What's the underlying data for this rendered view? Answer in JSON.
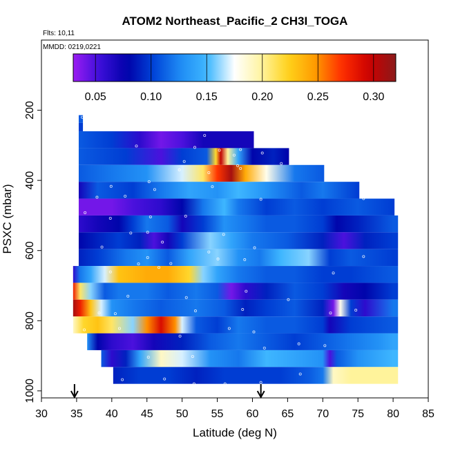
{
  "chart_data": {
    "type": "heatmap",
    "title": "ATOM2 Northeast_Pacific_2 CH3I_TOGA",
    "flights_note": "Flts: 10,11",
    "dates_note": "MMDD: 0219,0221",
    "xlabel": "Latitude (deg N)",
    "ylabel": "PSXC (mbar)",
    "xlim": [
      30,
      85
    ],
    "ylim": [
      1020,
      0
    ],
    "x_ticks": [
      "30",
      "35",
      "40",
      "45",
      "50",
      "55",
      "60",
      "65",
      "70",
      "75",
      "80",
      "85"
    ],
    "y_ticks": [
      "200",
      "400",
      "600",
      "800",
      "1000"
    ],
    "colorbar": {
      "range": [
        0.03,
        0.32
      ],
      "tick_values": [
        0.05,
        0.1,
        0.15,
        0.2,
        0.25,
        0.3
      ],
      "tick_labels": [
        "0.05",
        "0.10",
        "0.15",
        "0.20",
        "0.25",
        "0.30"
      ],
      "colors": [
        "#9a1cf2",
        "#3b0fd9",
        "#0000a8",
        "#0044d8",
        "#1f8cf5",
        "#3fb8ff",
        "#ffffff",
        "#fff4a0",
        "#ffd21a",
        "#ff9a00",
        "#ff2d00",
        "#cc0000",
        "#8b1a1a"
      ]
    },
    "arrows_lat": [
      34.7,
      61.2
    ],
    "bands": [
      {
        "p_top": 214,
        "p_bot": 236,
        "x0": 35.3,
        "x1": 35.9,
        "stops": [
          [
            35.3,
            0.11
          ]
        ]
      },
      {
        "p_top": 236,
        "p_bot": 260,
        "x0": 35.3,
        "x1": 35.9,
        "stops": [
          [
            35.3,
            0.1
          ]
        ]
      },
      {
        "p_top": 260,
        "p_bot": 308,
        "x0": 35.3,
        "x1": 60.2,
        "stops": [
          [
            35.3,
            0.11
          ],
          [
            40,
            0.1
          ],
          [
            44,
            0.06
          ],
          [
            47,
            0.04
          ],
          [
            50,
            0.05
          ],
          [
            53,
            0.07
          ],
          [
            56,
            0.07
          ],
          [
            60,
            0.07
          ]
        ]
      },
      {
        "p_top": 308,
        "p_bot": 356,
        "x0": 35.3,
        "x1": 65.2,
        "stops": [
          [
            35.3,
            0.11
          ],
          [
            42,
            0.1
          ],
          [
            47,
            0.05
          ],
          [
            50,
            0.1
          ],
          [
            53.5,
            0.11
          ],
          [
            54.8,
            0.22
          ],
          [
            55.5,
            0.3
          ],
          [
            56.5,
            0.2
          ],
          [
            58,
            0.14
          ],
          [
            60,
            0.08
          ],
          [
            63,
            0.09
          ],
          [
            65,
            0.08
          ]
        ]
      },
      {
        "p_top": 356,
        "p_bot": 404,
        "x0": 35.3,
        "x1": 70.2,
        "stops": [
          [
            35.3,
            0.11
          ],
          [
            40,
            0.12
          ],
          [
            45,
            0.13
          ],
          [
            50,
            0.17
          ],
          [
            53,
            0.21
          ],
          [
            55,
            0.27
          ],
          [
            57,
            0.31
          ],
          [
            59,
            0.24
          ],
          [
            62,
            0.18
          ],
          [
            66,
            0.12
          ],
          [
            70,
            0.11
          ]
        ]
      },
      {
        "p_top": 404,
        "p_bot": 452,
        "x0": 35.3,
        "x1": 75.2,
        "stops": [
          [
            35.3,
            0.07
          ],
          [
            38,
            0.11
          ],
          [
            43,
            0.1
          ],
          [
            47,
            0.12
          ],
          [
            51,
            0.14
          ],
          [
            55,
            0.13
          ],
          [
            58,
            0.15
          ],
          [
            62,
            0.13
          ],
          [
            67,
            0.11
          ],
          [
            70,
            0.12
          ],
          [
            75,
            0.1
          ]
        ]
      },
      {
        "p_top": 452,
        "p_bot": 500,
        "x0": 35.3,
        "x1": 80.2,
        "stops": [
          [
            35.3,
            0.04
          ],
          [
            40,
            0.04
          ],
          [
            43,
            0.05
          ],
          [
            47,
            0.06
          ],
          [
            50,
            0.08
          ],
          [
            53,
            0.12
          ],
          [
            56,
            0.15
          ],
          [
            58,
            0.12
          ],
          [
            62,
            0.1
          ],
          [
            66,
            0.11
          ],
          [
            70,
            0.1
          ],
          [
            75,
            0.11
          ],
          [
            80,
            0.1
          ]
        ]
      },
      {
        "p_top": 500,
        "p_bot": 548,
        "x0": 35.3,
        "x1": 80.7,
        "stops": [
          [
            35.3,
            0.06
          ],
          [
            38,
            0.07
          ],
          [
            41,
            0.08
          ],
          [
            43,
            0.1
          ],
          [
            45,
            0.12
          ],
          [
            48,
            0.11
          ],
          [
            50,
            0.07
          ],
          [
            53,
            0.1
          ],
          [
            56,
            0.13
          ],
          [
            59,
            0.12
          ],
          [
            62,
            0.11
          ],
          [
            66,
            0.11
          ],
          [
            70,
            0.1
          ],
          [
            72,
            0.08
          ],
          [
            75,
            0.09
          ],
          [
            80,
            0.11
          ]
        ]
      },
      {
        "p_top": 548,
        "p_bot": 596,
        "x0": 35.3,
        "x1": 80.7,
        "stops": [
          [
            35.3,
            0.08
          ],
          [
            38,
            0.09
          ],
          [
            41,
            0.1
          ],
          [
            44,
            0.09
          ],
          [
            46,
            0.05
          ],
          [
            48,
            0.07
          ],
          [
            50,
            0.1
          ],
          [
            54,
            0.16
          ],
          [
            57,
            0.14
          ],
          [
            60,
            0.12
          ],
          [
            65,
            0.11
          ],
          [
            70,
            0.09
          ],
          [
            73,
            0.05
          ],
          [
            76,
            0.09
          ],
          [
            80,
            0.1
          ]
        ]
      },
      {
        "p_top": 596,
        "p_bot": 644,
        "x0": 35.3,
        "x1": 80.7,
        "stops": [
          [
            35.3,
            0.09
          ],
          [
            38,
            0.1
          ],
          [
            42,
            0.12
          ],
          [
            45,
            0.13
          ],
          [
            48,
            0.11
          ],
          [
            51,
            0.14
          ],
          [
            55,
            0.16
          ],
          [
            58,
            0.13
          ],
          [
            61,
            0.12
          ],
          [
            64,
            0.15
          ],
          [
            68,
            0.16
          ],
          [
            71,
            0.1
          ],
          [
            74,
            0.11
          ],
          [
            80,
            0.1
          ]
        ]
      },
      {
        "p_top": 644,
        "p_bot": 692,
        "x0": 34.5,
        "x1": 80.7,
        "stops": [
          [
            34.5,
            0.06
          ],
          [
            35.5,
            0.12
          ],
          [
            37,
            0.14
          ],
          [
            39,
            0.17
          ],
          [
            41,
            0.23
          ],
          [
            45,
            0.24
          ],
          [
            48,
            0.24
          ],
          [
            51,
            0.22
          ],
          [
            53,
            0.16
          ],
          [
            55,
            0.14
          ],
          [
            58,
            0.12
          ],
          [
            62,
            0.11
          ],
          [
            66,
            0.11
          ],
          [
            70,
            0.1
          ],
          [
            74,
            0.1
          ],
          [
            80,
            0.11
          ]
        ]
      },
      {
        "p_top": 692,
        "p_bot": 740,
        "x0": 34.5,
        "x1": 80.7,
        "stops": [
          [
            34.5,
            0.28
          ],
          [
            35.5,
            0.21
          ],
          [
            37,
            0.16
          ],
          [
            39,
            0.11
          ],
          [
            41,
            0.12
          ],
          [
            45,
            0.12
          ],
          [
            48,
            0.11
          ],
          [
            52,
            0.12
          ],
          [
            55,
            0.11
          ],
          [
            57,
            0.04
          ],
          [
            59,
            0.06
          ],
          [
            62,
            0.09
          ],
          [
            66,
            0.11
          ],
          [
            70,
            0.1
          ],
          [
            73,
            0.07
          ],
          [
            76,
            0.08
          ],
          [
            80,
            0.1
          ]
        ]
      },
      {
        "p_top": 740,
        "p_bot": 788,
        "x0": 34.5,
        "x1": 80.7,
        "stops": [
          [
            34.5,
            0.31
          ],
          [
            35.5,
            0.28
          ],
          [
            37,
            0.23
          ],
          [
            38.5,
            0.17
          ],
          [
            40,
            0.13
          ],
          [
            43,
            0.12
          ],
          [
            47,
            0.11
          ],
          [
            52,
            0.12
          ],
          [
            56,
            0.11
          ],
          [
            59,
            0.09
          ],
          [
            62,
            0.1
          ],
          [
            66,
            0.11
          ],
          [
            70,
            0.09
          ],
          [
            71.5,
            0.04
          ],
          [
            72.5,
            0.18
          ],
          [
            74,
            0.1
          ],
          [
            76,
            0.06
          ],
          [
            80,
            0.12
          ]
        ]
      },
      {
        "p_top": 788,
        "p_bot": 836,
        "x0": 34.5,
        "x1": 80.7,
        "stops": [
          [
            34.5,
            0.19
          ],
          [
            36,
            0.22
          ],
          [
            38,
            0.23
          ],
          [
            40,
            0.21
          ],
          [
            43,
            0.16
          ],
          [
            45,
            0.25
          ],
          [
            47,
            0.29
          ],
          [
            49,
            0.25
          ],
          [
            50,
            0.17
          ],
          [
            52,
            0.11
          ],
          [
            55,
            0.1
          ],
          [
            58,
            0.12
          ],
          [
            62,
            0.11
          ],
          [
            66,
            0.11
          ],
          [
            70,
            0.1
          ],
          [
            71,
            0.07
          ],
          [
            74,
            0.1
          ],
          [
            80,
            0.11
          ]
        ]
      },
      {
        "p_top": 836,
        "p_bot": 884,
        "x0": 36.5,
        "x1": 80.7,
        "stops": [
          [
            36.5,
            0.13
          ],
          [
            38,
            0.08
          ],
          [
            40,
            0.06
          ],
          [
            43,
            0.05
          ],
          [
            46,
            0.07
          ],
          [
            50,
            0.09
          ],
          [
            54,
            0.11
          ],
          [
            58,
            0.12
          ],
          [
            62,
            0.11
          ],
          [
            66,
            0.1
          ],
          [
            70,
            0.11
          ],
          [
            74,
            0.12
          ],
          [
            78,
            0.13
          ],
          [
            80,
            0.14
          ]
        ]
      },
      {
        "p_top": 884,
        "p_bot": 932,
        "x0": 38.5,
        "x1": 80.7,
        "stops": [
          [
            38.5,
            0.11
          ],
          [
            40,
            0.06
          ],
          [
            42,
            0.09
          ],
          [
            44,
            0.14
          ],
          [
            47,
            0.19
          ],
          [
            50,
            0.17
          ],
          [
            54,
            0.13
          ],
          [
            58,
            0.12
          ],
          [
            62,
            0.15
          ],
          [
            66,
            0.14
          ],
          [
            70,
            0.13
          ],
          [
            71,
            0.05
          ],
          [
            72,
            0.11
          ],
          [
            75,
            0.13
          ],
          [
            80,
            0.15
          ]
        ]
      },
      {
        "p_top": 932,
        "p_bot": 980,
        "x0": 40.2,
        "x1": 80.7,
        "stops": [
          [
            40.2,
            0.09
          ],
          [
            44,
            0.1
          ],
          [
            48,
            0.1
          ],
          [
            52,
            0.09
          ],
          [
            56,
            0.1
          ],
          [
            60,
            0.1
          ],
          [
            64,
            0.1
          ],
          [
            68,
            0.11
          ],
          [
            70,
            0.12
          ],
          [
            71.5,
            0.19
          ],
          [
            74,
            0.2
          ],
          [
            80,
            0.2
          ]
        ]
      }
    ],
    "samples": [
      [
        35.8,
        220
      ],
      [
        53.2,
        272
      ],
      [
        43.5,
        302
      ],
      [
        51.8,
        306
      ],
      [
        55.3,
        314
      ],
      [
        58.3,
        312
      ],
      [
        61.4,
        322
      ],
      [
        50.3,
        346
      ],
      [
        57.4,
        328
      ],
      [
        57.9,
        358
      ],
      [
        58.3,
        366
      ],
      [
        49.6,
        370
      ],
      [
        53.8,
        378
      ],
      [
        64.1,
        352
      ],
      [
        45.3,
        404
      ],
      [
        39.9,
        417
      ],
      [
        54.3,
        418
      ],
      [
        37.9,
        448
      ],
      [
        41.9,
        445
      ],
      [
        46.1,
        426
      ],
      [
        61.2,
        454
      ],
      [
        75.8,
        452
      ],
      [
        36.2,
        492
      ],
      [
        39.8,
        508
      ],
      [
        45.5,
        504
      ],
      [
        50.5,
        502
      ],
      [
        42.7,
        550
      ],
      [
        45.1,
        548
      ],
      [
        55.9,
        554
      ],
      [
        38.6,
        590
      ],
      [
        47.2,
        576
      ],
      [
        53.8,
        604
      ],
      [
        60.3,
        592
      ],
      [
        45.1,
        620
      ],
      [
        55.1,
        624
      ],
      [
        58.9,
        626
      ],
      [
        75.8,
        617
      ],
      [
        39.8,
        661
      ],
      [
        43.8,
        638
      ],
      [
        48.4,
        637
      ],
      [
        46.7,
        648
      ],
      [
        71.5,
        664
      ],
      [
        42.3,
        730
      ],
      [
        50.6,
        734
      ],
      [
        59.1,
        716
      ],
      [
        65.1,
        740
      ],
      [
        38.2,
        778
      ],
      [
        40.5,
        780
      ],
      [
        51.9,
        772
      ],
      [
        58.6,
        768
      ],
      [
        71.1,
        778
      ],
      [
        74.7,
        770
      ],
      [
        36.1,
        826
      ],
      [
        41.1,
        822
      ],
      [
        56.7,
        822
      ],
      [
        60.2,
        832
      ],
      [
        49.7,
        844
      ],
      [
        70.3,
        871
      ],
      [
        45.2,
        904
      ],
      [
        51.5,
        902
      ],
      [
        61.7,
        878
      ],
      [
        66.6,
        866
      ],
      [
        41.5,
        968
      ],
      [
        47.5,
        966
      ],
      [
        51.7,
        980
      ],
      [
        56.1,
        980
      ],
      [
        61.2,
        976
      ],
      [
        66.8,
        952
      ]
    ]
  }
}
